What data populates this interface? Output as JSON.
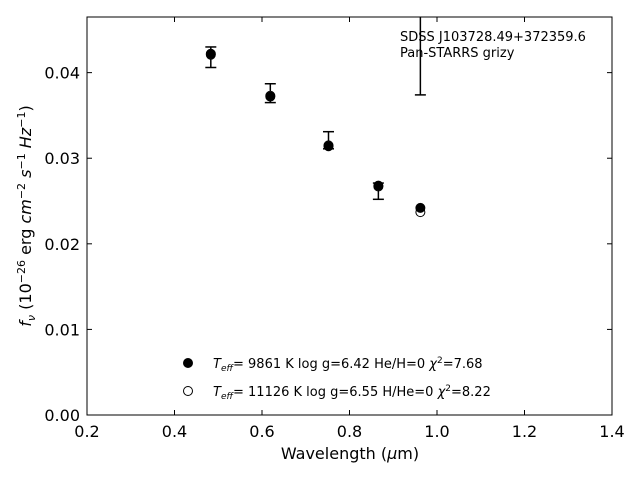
{
  "chart_data": {
    "type": "scatter",
    "annotation": [
      "SDSS J103728.49+372359.6",
      "Pan-STARRS grizy"
    ],
    "xlabel": "Wavelength (μm)",
    "ylabel": "f_ν (10^-26 erg cm^-2 s^-1 Hz^-1)",
    "xlim": [
      0.2,
      1.4
    ],
    "ylim": [
      0.0,
      0.0465
    ],
    "xticks": [
      0.2,
      0.4,
      0.6,
      0.8,
      1.0,
      1.2,
      1.4
    ],
    "xtick_labels": [
      "0.2",
      "0.4",
      "0.6",
      "0.8",
      "1.0",
      "1.2",
      "1.4"
    ],
    "yticks": [
      0.0,
      0.01,
      0.02,
      0.03,
      0.04
    ],
    "ytick_labels": [
      "0.00",
      "0.01",
      "0.02",
      "0.03",
      "0.04"
    ],
    "observed": {
      "x": [
        0.483,
        0.619,
        0.752,
        0.866,
        0.962
      ],
      "y_low": [
        0.0406,
        0.0365,
        0.0311,
        0.0252,
        0.0374
      ],
      "y_high": [
        0.043,
        0.0387,
        0.0331,
        0.0271,
        0.0465
      ]
    },
    "series": [
      {
        "name": "T_eff=  9861 K  log g=6.42  He/H=0  χ²=7.68",
        "marker": "filled",
        "x": [
          0.483,
          0.619,
          0.752,
          0.866,
          0.962
        ],
        "y": [
          0.0422,
          0.0372,
          0.0314,
          0.0268,
          0.0242
        ]
      },
      {
        "name": "T_eff= 11126 K  log g=6.55  H/He=0  χ²=8.22",
        "marker": "open",
        "x": [
          0.483,
          0.619,
          0.752,
          0.866,
          0.962
        ],
        "y": [
          0.0421,
          0.0373,
          0.0315,
          0.0267,
          0.0237
        ]
      }
    ],
    "legend_placement": "bottom-center",
    "grid": false
  }
}
